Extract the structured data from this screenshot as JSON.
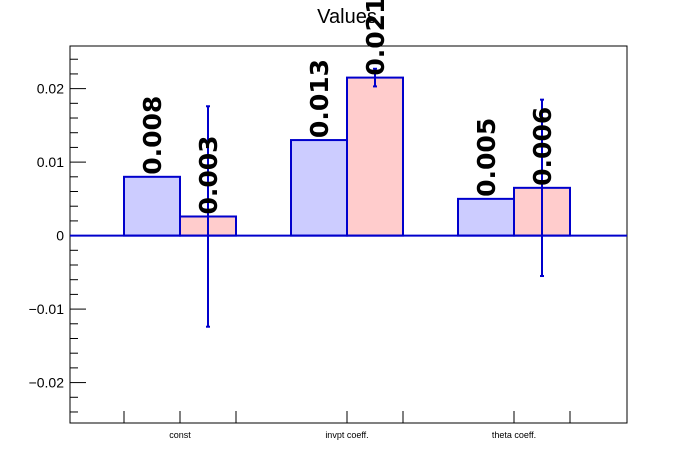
{
  "chart_data": {
    "type": "bar",
    "title": "Values",
    "xlabel": "",
    "ylabel": "",
    "categories": [
      "const",
      "invpt coeff.",
      "theta coeff."
    ],
    "series": [
      {
        "values": [
          0.008,
          0.013,
          0.005
        ],
        "value_labels": [
          "0.008",
          "0.013",
          "0.005"
        ],
        "errors": [
          0.0,
          0.0,
          0.0
        ],
        "fill": "#ccccff",
        "line": "#0000cc"
      },
      {
        "values": [
          0.0026,
          0.0215,
          0.0065
        ],
        "value_labels": [
          "0.003",
          "0.021",
          "0.006"
        ],
        "errors": [
          0.015,
          0.0012,
          0.012
        ],
        "fill": "#ffcccc",
        "line": "#0000cc"
      }
    ],
    "ylim": [
      -0.0255,
      0.0258
    ],
    "yticks": [
      -0.02,
      -0.01,
      0,
      0.01,
      0.02
    ],
    "ytick_labels": [
      "−0.02",
      "−0.01",
      "0",
      "0.01",
      "0.02"
    ],
    "zero_line_color": "#0000cc",
    "grid": false,
    "legend": "none"
  }
}
